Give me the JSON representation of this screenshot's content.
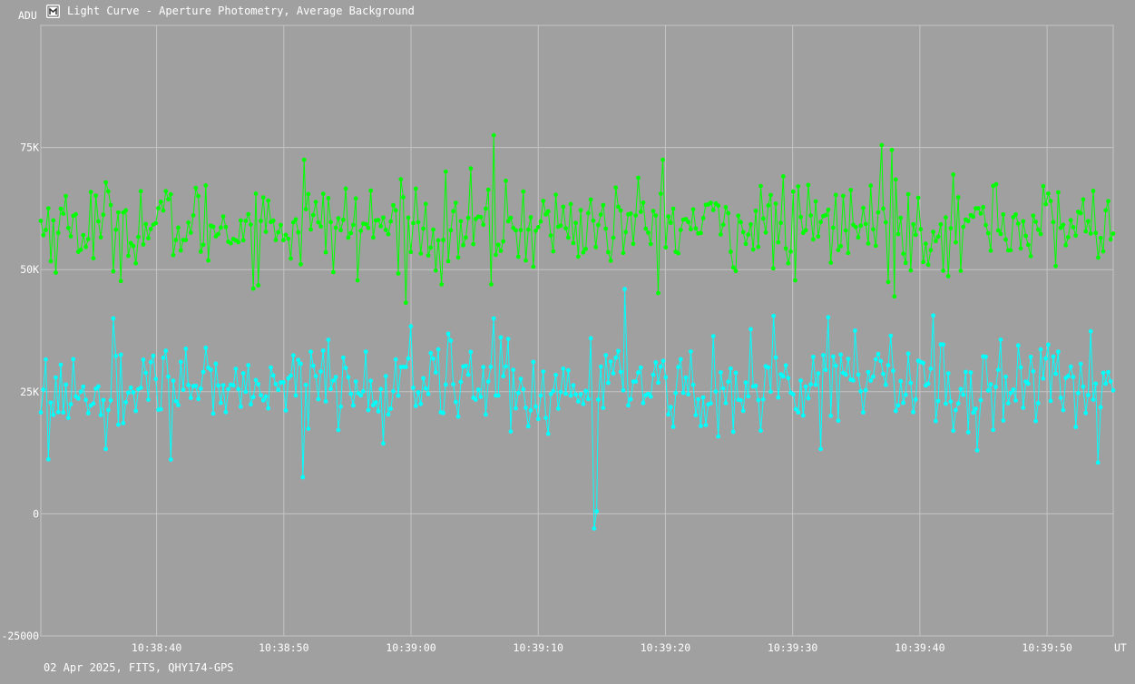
{
  "window": {
    "title": "Light Curve - Aperture Photometry, Average Background",
    "icon": "light-curve-app-icon"
  },
  "footer": {
    "text": "02 Apr 2025, FITS, QHY174-GPS"
  },
  "colors": {
    "background": "#a0a0a0",
    "grid": "#c4c4c4",
    "series_1": "#00ff00",
    "series_2": "#00ffff",
    "text": "#ffffff"
  },
  "chart_data": {
    "type": "line",
    "title": "Light Curve - Aperture Photometry, Average Background",
    "ylabel": "ADU",
    "xlabel": "UT",
    "grid": true,
    "ylim": [
      -25000,
      100000
    ],
    "xlim": [
      "10:38:30.9",
      "10:39:55.2"
    ],
    "yticks": [
      {
        "value": 75000,
        "label": "75K"
      },
      {
        "value": 50000,
        "label": "50K"
      },
      {
        "value": 25000,
        "label": "25K"
      },
      {
        "value": 0,
        "label": "0"
      },
      {
        "value": -25000,
        "label": "-25000"
      }
    ],
    "xticks": [
      "10:38:40",
      "10:38:50",
      "10:39:00",
      "10:39:10",
      "10:39:20",
      "10:39:30",
      "10:39:40",
      "10:39:50"
    ],
    "series": [
      {
        "color": "#00ff00",
        "approx_mean": 59000,
        "approx_std": 5500,
        "points": [
          [
            "10:38:51.6",
            72500
          ],
          [
            "10:39:06.5",
            77500
          ],
          [
            "10:39:06.3",
            47000
          ],
          [
            "10:38:55.8",
            47800
          ],
          [
            "10:39:02.4",
            47000
          ],
          [
            "10:39:30.2",
            47800
          ],
          [
            "10:39:37.0",
            75500
          ],
          [
            "10:39:37.8",
            74500
          ],
          [
            "10:39:38.0",
            44500
          ],
          [
            "10:39:19.8",
            72500
          ],
          [
            "10:39:46.0",
            67500
          ]
        ]
      },
      {
        "color": "#00ffff",
        "approx_mean": 26000,
        "approx_std": 6000,
        "points": [
          [
            "10:38:36.6",
            40000
          ],
          [
            "10:38:51.5",
            7500
          ],
          [
            "10:39:06.5",
            40000
          ],
          [
            "10:39:14.4",
            -3000
          ],
          [
            "10:39:14.6",
            500
          ],
          [
            "10:39:16.8",
            46000
          ],
          [
            "10:39:28.5",
            40500
          ],
          [
            "10:39:34.9",
            37500
          ],
          [
            "10:39:44.5",
            13000
          ],
          [
            "10:39:54.0",
            10500
          ]
        ]
      }
    ]
  }
}
